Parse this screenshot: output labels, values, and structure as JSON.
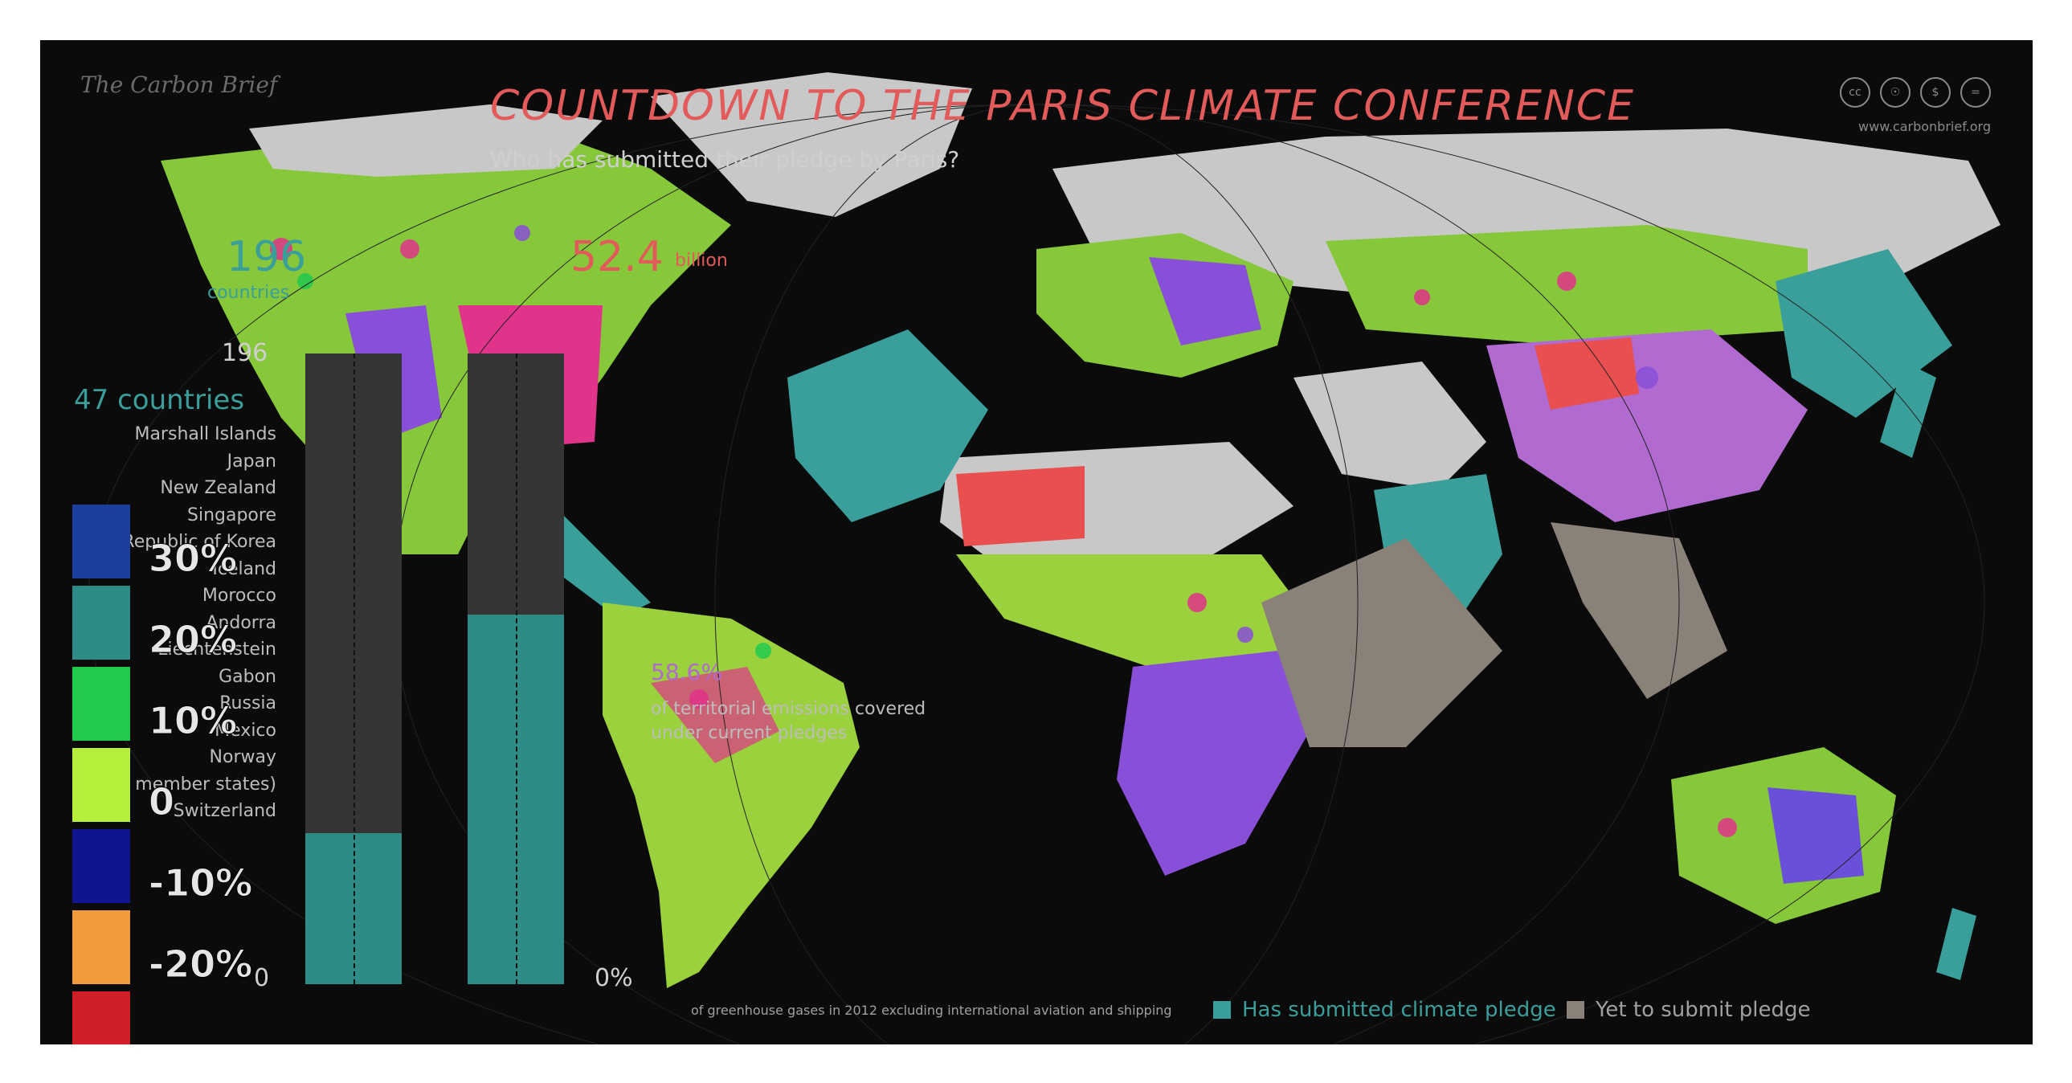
{
  "header": {
    "brand": "The Carbon Brief",
    "title": "COUNTDOWN TO THE PARIS CLIMATE CONFERENCE",
    "subtitle": "Who has submitted their pledge by Paris?",
    "website": "www.carbonbrief.org",
    "license_icons": [
      "cc-icon",
      "by-icon",
      "nc-icon",
      "nd-icon"
    ]
  },
  "stats": {
    "countries_total": "196",
    "countries_label": "countries",
    "emissions_value": "52.4",
    "emissions_unit": "billion",
    "coverage_pct": "58.6%",
    "coverage_label_1": "of territorial emissions covered",
    "coverage_label_2": "under current pledges"
  },
  "bar_chart": {
    "axis_left_top": "196",
    "axis_left_bottom": "0",
    "axis_right_bottom": "0%",
    "submitted_count_label": "47 countries",
    "submitted_fraction_countries": 0.24,
    "submitted_fraction_emissions": 0.586,
    "note": "of greenhouse gases in 2012 excluding international aviation and shipping"
  },
  "submitted_countries": [
    "Marshall Islands",
    "Japan",
    "New Zealand",
    "Singapore",
    "Republic of Korea",
    "Iceland",
    "Morocco",
    "Andorra",
    "Liechtenstein",
    "Gabon",
    "Russia",
    "Mexico",
    "Norway",
    "(28 member states)",
    "Switzerland"
  ],
  "color_legend": [
    {
      "label": "30%",
      "color": "#1c3f9e"
    },
    {
      "label": "20%",
      "color": "#2e8b86"
    },
    {
      "label": "10%",
      "color": "#22c94f"
    },
    {
      "label": "0",
      "color": "#b6f03c"
    },
    {
      "label": "-10%",
      "color": "#10148f"
    },
    {
      "label": "-20%",
      "color": "#f09a3e"
    },
    {
      "label": "",
      "color": "#d01f26"
    }
  ],
  "map_legend": [
    {
      "label": "Has submitted climate pledge",
      "color": "#3a9e9a"
    },
    {
      "label": "Yet to submit pledge",
      "color": "#8a8178"
    }
  ],
  "colors": {
    "background": "#0b0b0b",
    "submitted": "#3a9e9a",
    "pending": "#8a8178",
    "title_red": "#e25a5a",
    "noise_green": "#b6f03c",
    "noise_pink": "#e0338a",
    "noise_purple": "#8a4fd8"
  }
}
